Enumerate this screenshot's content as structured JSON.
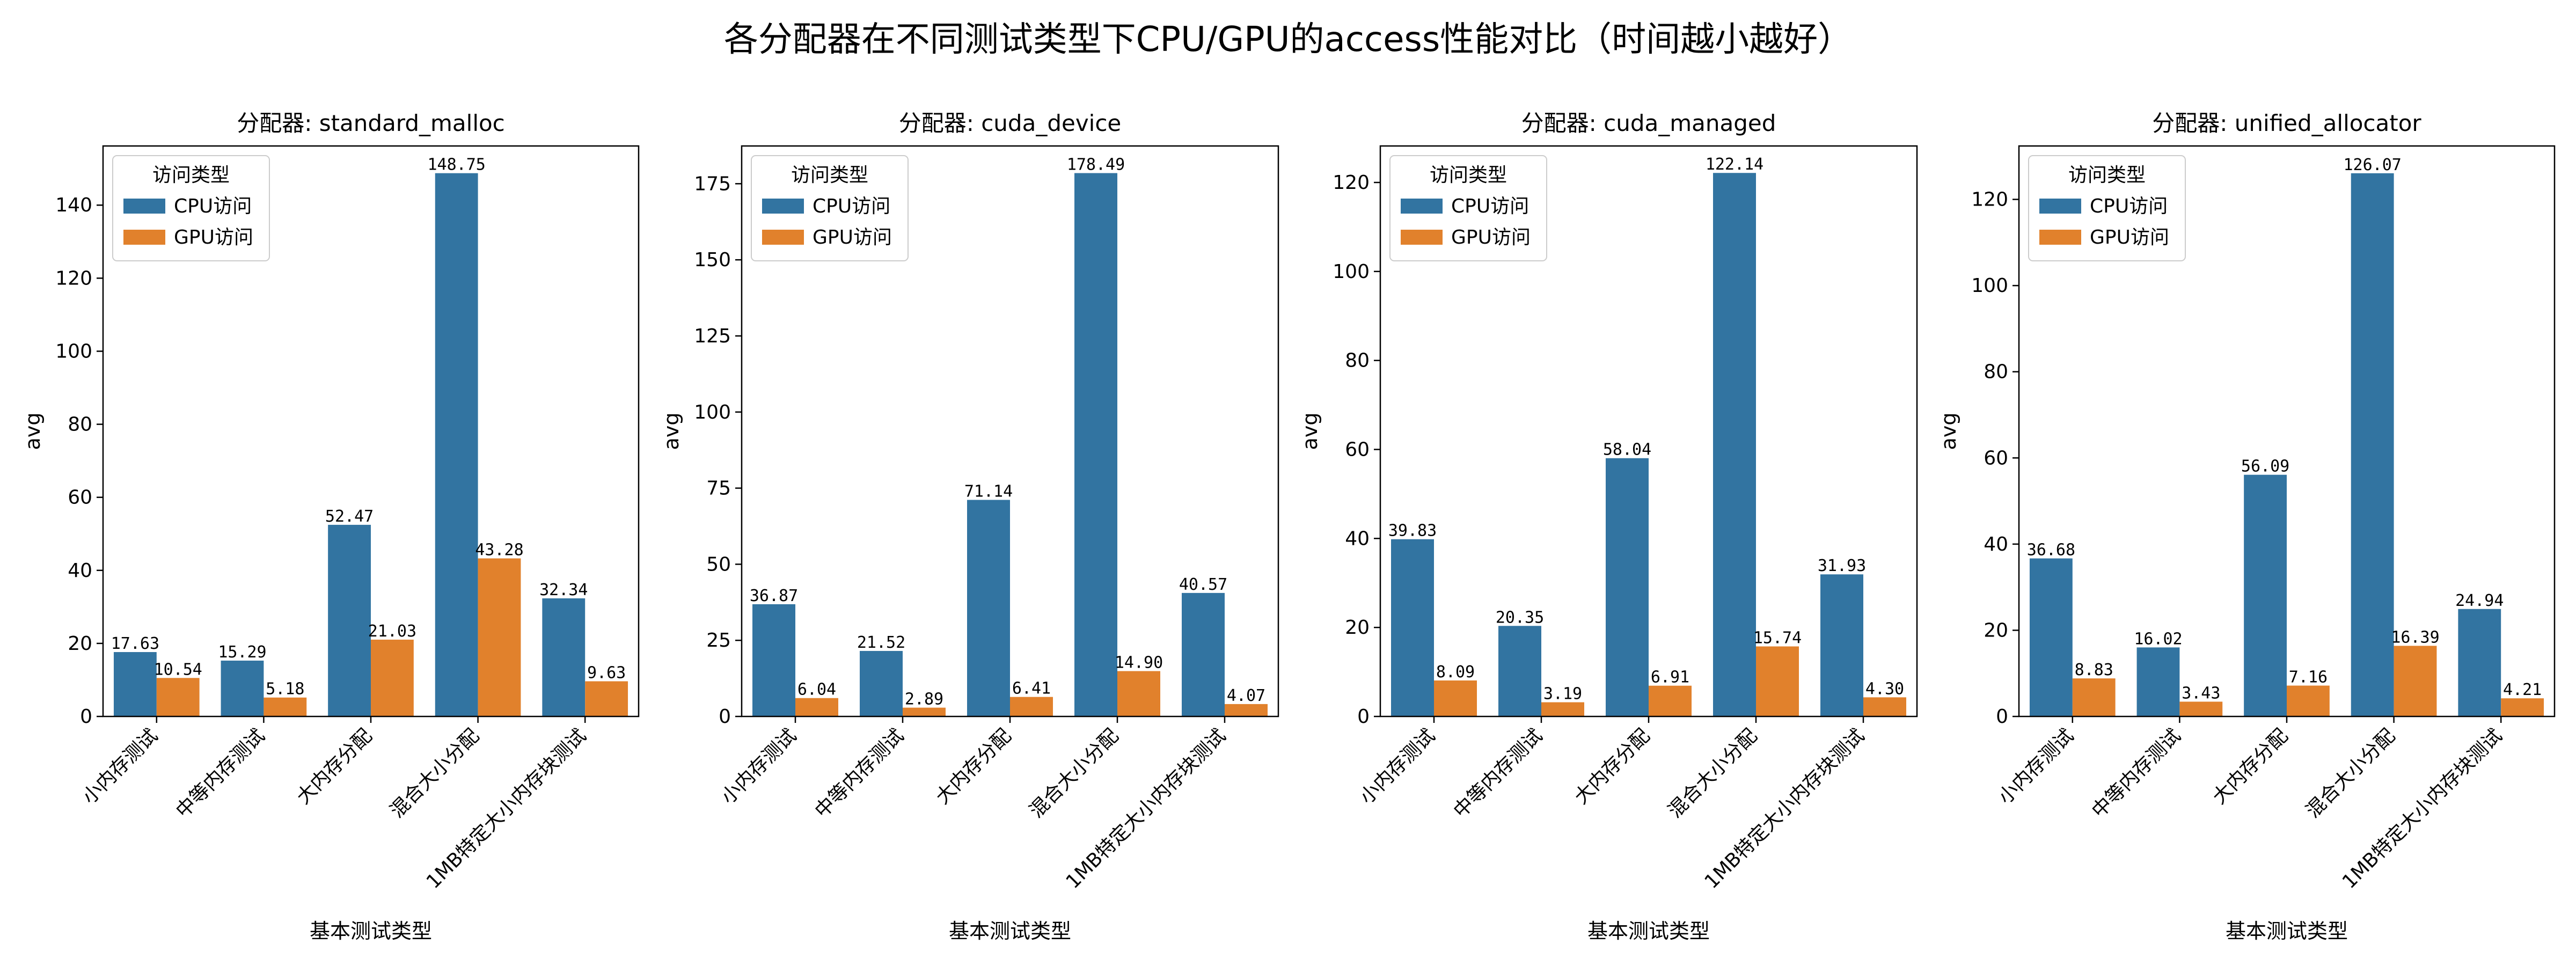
{
  "figure": {
    "title": "各分配器在不同测试类型下CPU/GPU的access性能对比（时间越小越好）"
  },
  "colors": {
    "cpu": "#3274a1",
    "gpu": "#e1812c"
  },
  "chart_data": [
    {
      "type": "bar",
      "title": "分配器: standard_malloc",
      "xlabel": "基本测试类型",
      "ylabel": "avg",
      "categories": [
        "小内存测试",
        "中等内存测试",
        "大内存分配",
        "混合大小分配",
        "1MB特定大小内存块测试"
      ],
      "series": [
        {
          "name": "CPU访问",
          "values": [
            17.63,
            15.29,
            52.47,
            148.75,
            32.34
          ]
        },
        {
          "name": "GPU访问",
          "values": [
            10.54,
            5.18,
            21.03,
            43.28,
            9.63
          ]
        }
      ],
      "ylim": [
        0,
        156.2
      ],
      "yticks": [
        0,
        20,
        40,
        60,
        80,
        100,
        120,
        140
      ],
      "legend": {
        "title": "访问类型",
        "placement": "top-left"
      }
    },
    {
      "type": "bar",
      "title": "分配器: cuda_device",
      "xlabel": "基本测试类型",
      "ylabel": "avg",
      "categories": [
        "小内存测试",
        "中等内存测试",
        "大内存分配",
        "混合大小分配",
        "1MB特定大小内存块测试"
      ],
      "series": [
        {
          "name": "CPU访问",
          "values": [
            36.87,
            21.52,
            71.14,
            178.49,
            40.57
          ]
        },
        {
          "name": "GPU访问",
          "values": [
            6.04,
            2.89,
            6.41,
            14.9,
            4.07
          ]
        }
      ],
      "ylim": [
        0,
        187.4
      ],
      "yticks": [
        0,
        25,
        50,
        75,
        100,
        125,
        150,
        175
      ],
      "legend": {
        "title": "访问类型",
        "placement": "top-left"
      }
    },
    {
      "type": "bar",
      "title": "分配器: cuda_managed",
      "xlabel": "基本测试类型",
      "ylabel": "avg",
      "categories": [
        "小内存测试",
        "中等内存测试",
        "大内存分配",
        "混合大小分配",
        "1MB特定大小内存块测试"
      ],
      "series": [
        {
          "name": "CPU访问",
          "values": [
            39.83,
            20.35,
            58.04,
            122.14,
            31.93
          ]
        },
        {
          "name": "GPU访问",
          "values": [
            8.09,
            3.19,
            6.91,
            15.74,
            4.3
          ]
        }
      ],
      "ylim": [
        0,
        128.2
      ],
      "yticks": [
        0,
        20,
        40,
        60,
        80,
        100,
        120
      ],
      "legend": {
        "title": "访问类型",
        "placement": "top-left"
      }
    },
    {
      "type": "bar",
      "title": "分配器: unified_allocator",
      "xlabel": "基本测试类型",
      "ylabel": "avg",
      "categories": [
        "小内存测试",
        "中等内存测试",
        "大内存分配",
        "混合大小分配",
        "1MB特定大小内存块测试"
      ],
      "series": [
        {
          "name": "CPU访问",
          "values": [
            36.68,
            16.02,
            56.09,
            126.07,
            24.94
          ]
        },
        {
          "name": "GPU访问",
          "values": [
            8.83,
            3.43,
            7.16,
            16.39,
            4.21
          ]
        }
      ],
      "ylim": [
        0,
        132.4
      ],
      "yticks": [
        0,
        20,
        40,
        60,
        80,
        100,
        120
      ],
      "legend": {
        "title": "访问类型",
        "placement": "top-left"
      }
    }
  ]
}
